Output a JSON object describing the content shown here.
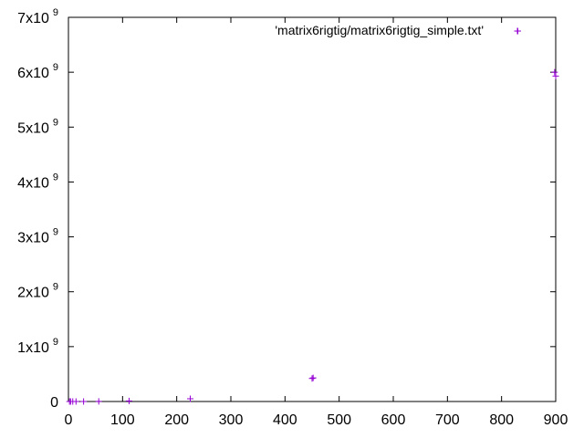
{
  "chart_data": {
    "type": "scatter",
    "title": "",
    "xlabel": "",
    "ylabel": "",
    "xlim": [
      0,
      900
    ],
    "ylim": [
      0,
      7000000000
    ],
    "grid": false,
    "legend_placement": "top-right",
    "x_ticks": [
      {
        "value": 0,
        "label": "0"
      },
      {
        "value": 100,
        "label": "100"
      },
      {
        "value": 200,
        "label": "200"
      },
      {
        "value": 300,
        "label": "300"
      },
      {
        "value": 400,
        "label": "400"
      },
      {
        "value": 500,
        "label": "500"
      },
      {
        "value": 600,
        "label": "600"
      },
      {
        "value": 700,
        "label": "700"
      },
      {
        "value": 800,
        "label": "800"
      },
      {
        "value": 900,
        "label": "900"
      }
    ],
    "y_ticks": [
      {
        "value": 0,
        "mantissa": "0",
        "exponent": ""
      },
      {
        "value": 1000000000,
        "mantissa": "1x10",
        "exponent": "9"
      },
      {
        "value": 2000000000,
        "mantissa": "2x10",
        "exponent": "9"
      },
      {
        "value": 3000000000,
        "mantissa": "3x10",
        "exponent": "9"
      },
      {
        "value": 4000000000,
        "mantissa": "4x10",
        "exponent": "9"
      },
      {
        "value": 5000000000,
        "mantissa": "5x10",
        "exponent": "9"
      },
      {
        "value": 6000000000,
        "mantissa": "6x10",
        "exponent": "9"
      },
      {
        "value": 7000000000,
        "mantissa": "7x10",
        "exponent": "9"
      }
    ],
    "series": [
      {
        "name": "'matrix6rigtig/matrix6rigtig_simple.txt'",
        "color": "#9400d3",
        "marker": "plus",
        "x": [
          2,
          4,
          8,
          14,
          28,
          56,
          112,
          225,
          450,
          452,
          830,
          898,
          900
        ],
        "y": [
          0,
          0,
          0,
          0,
          0,
          2000000,
          10000000,
          50000000,
          420000000,
          430000000,
          6750000000,
          6000000000,
          5930000000
        ]
      }
    ]
  }
}
